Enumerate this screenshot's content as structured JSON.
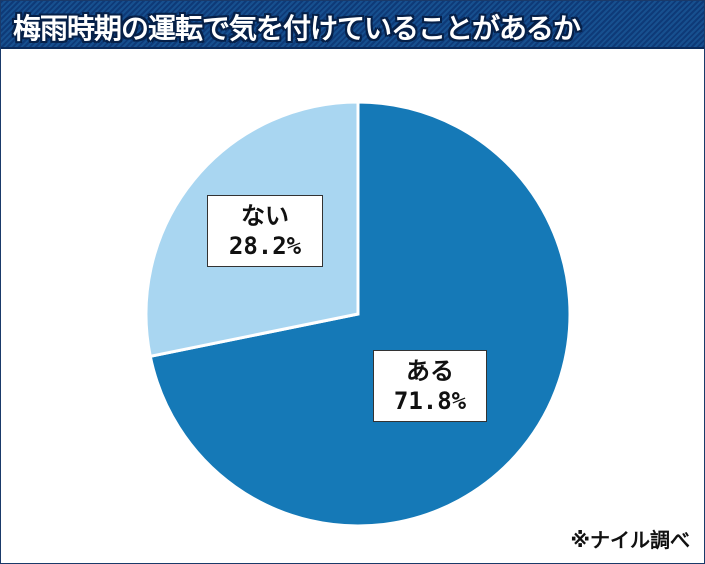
{
  "chart_data": {
    "type": "pie",
    "title": "梅雨時期の運転で気を付けていることがあるか",
    "slices": [
      {
        "label": "ある",
        "value": 71.8,
        "value_label": "71.8%",
        "color": "#1579b7"
      },
      {
        "label": "ない",
        "value": 28.2,
        "value_label": "28.2%",
        "color": "#a9d6f1"
      }
    ],
    "start": "12 o'clock",
    "direction": "clockwise",
    "legend": "none"
  },
  "source": "※ナイル調べ"
}
